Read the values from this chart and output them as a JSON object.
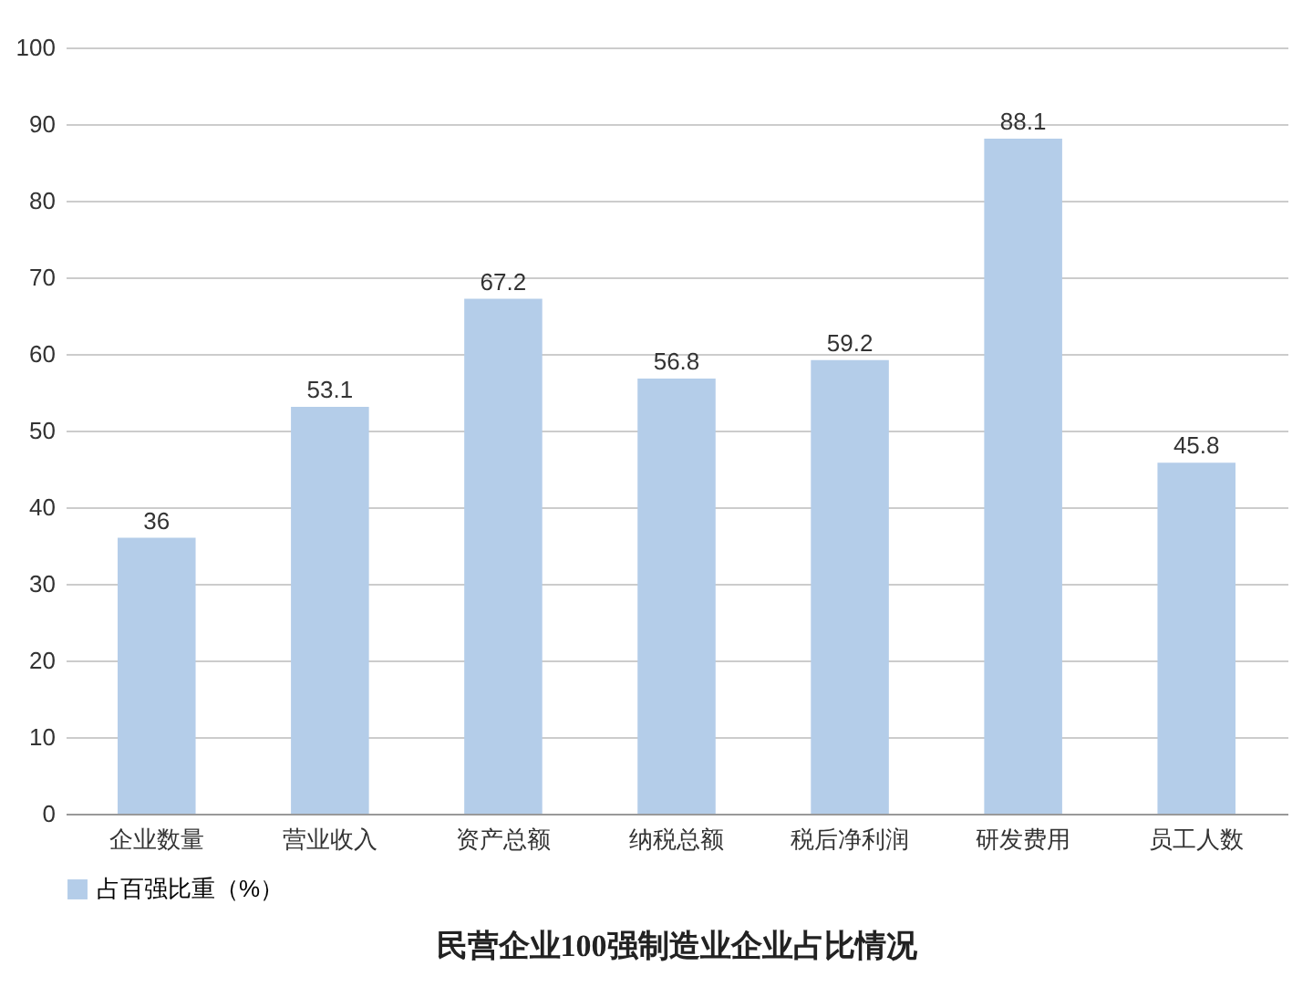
{
  "chart_data": {
    "type": "bar",
    "title": "民营企业100强制造业企业占比情况",
    "categories": [
      "企业数量",
      "营业收入",
      "资产总额",
      "纳税总额",
      "税后净利润",
      "研发费用",
      "员工人数"
    ],
    "series": [
      {
        "name": "占百强比重（%）",
        "color": "#b4cde9",
        "values": [
          36,
          53.1,
          67.2,
          56.8,
          59.2,
          88.1,
          45.8
        ]
      }
    ],
    "ylim": [
      0,
      100
    ],
    "yticks": [
      0,
      10,
      20,
      30,
      40,
      50,
      60,
      70,
      80,
      90,
      100
    ],
    "grid": "y",
    "legend": "bottom",
    "data_labels": true
  }
}
